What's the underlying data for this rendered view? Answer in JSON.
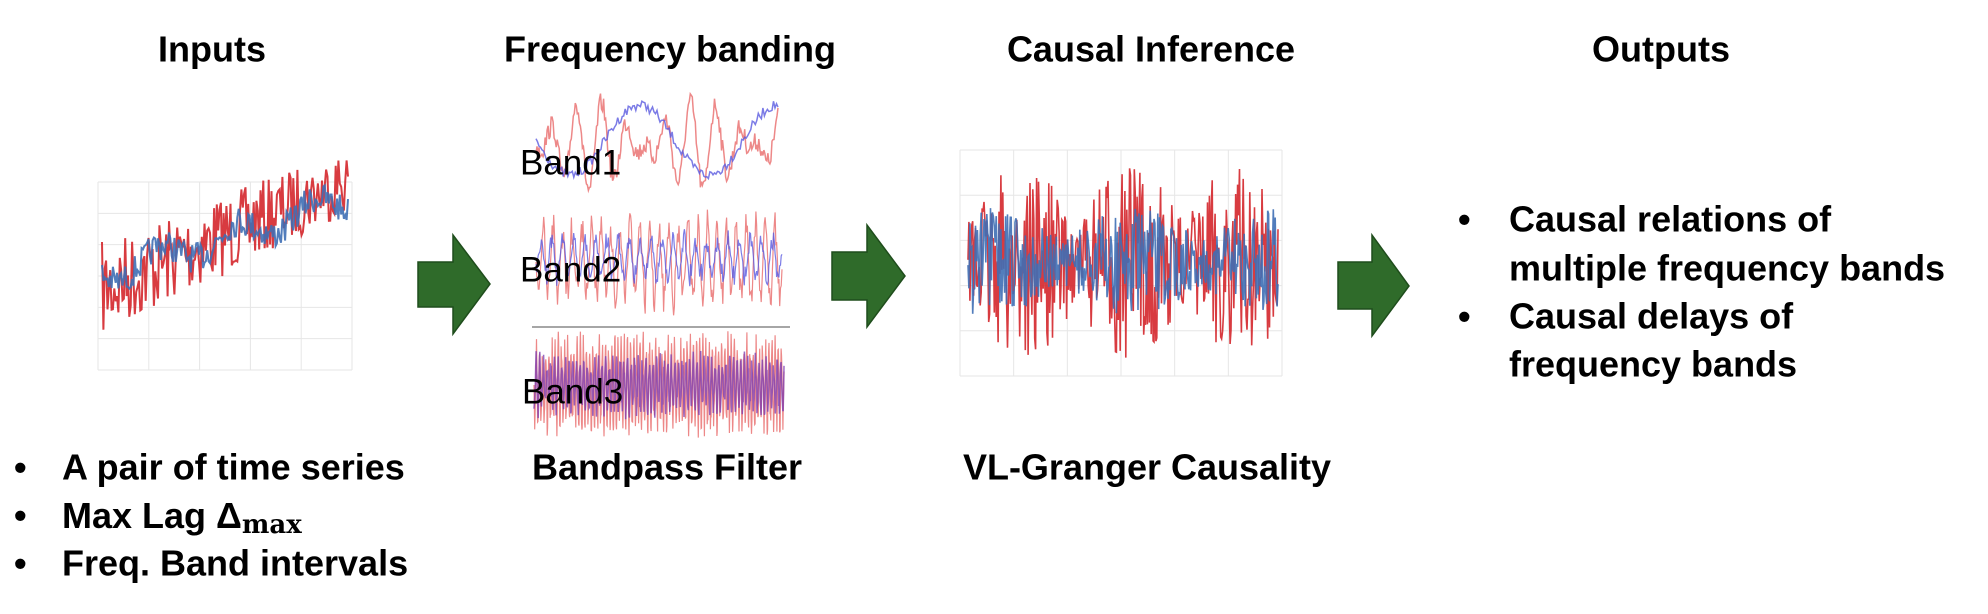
{
  "columns": [
    {
      "title": "Inputs"
    },
    {
      "title": "Frequency banding",
      "bands": [
        "Band1",
        "Band2",
        "Band3"
      ],
      "caption": "Bandpass Filter"
    },
    {
      "title": "Causal Inference",
      "caption": "VL-Granger Causality"
    },
    {
      "title": "Outputs"
    }
  ],
  "inputs": [
    "A pair of time series",
    {
      "text": "Max Lag Δ",
      "subscript": "max"
    },
    "Freq. Band intervals"
  ],
  "outputs": [
    [
      "Causal relations of",
      "multiple frequency bands"
    ],
    [
      "Causal delays of",
      "frequency bands"
    ]
  ]
}
